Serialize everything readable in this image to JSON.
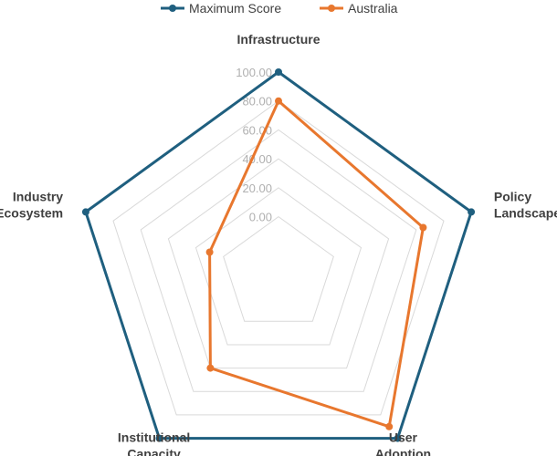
{
  "chart_data": {
    "type": "radar",
    "axes": [
      "Infrastructure",
      "Policy Landscape",
      "User Adoption",
      "Institutional Capacity",
      "Industry Ecosystem"
    ],
    "axis_label_lines": [
      [
        "Infrastructure"
      ],
      [
        "Policy",
        "Landscape"
      ],
      [
        "User",
        "Adoption"
      ],
      [
        "Institutional",
        "Capacity"
      ],
      [
        "Industry",
        "Ecosystem"
      ]
    ],
    "rlim": [
      -40,
      100
    ],
    "ticks": [
      0,
      20,
      40,
      60,
      80,
      100
    ],
    "tick_labels": [
      "0.00",
      "20.00",
      "40.00",
      "60.00",
      "80.00",
      "100.00"
    ],
    "grid": true,
    "legend_position": "top-center",
    "series": [
      {
        "name": "Maximum Score",
        "color": "#1f5f7f",
        "values": [
          100,
          100,
          100,
          100,
          100
        ]
      },
      {
        "name": "Australia",
        "color": "#e8772e",
        "values": [
          80,
          65,
          90,
          40,
          10
        ]
      }
    ]
  }
}
